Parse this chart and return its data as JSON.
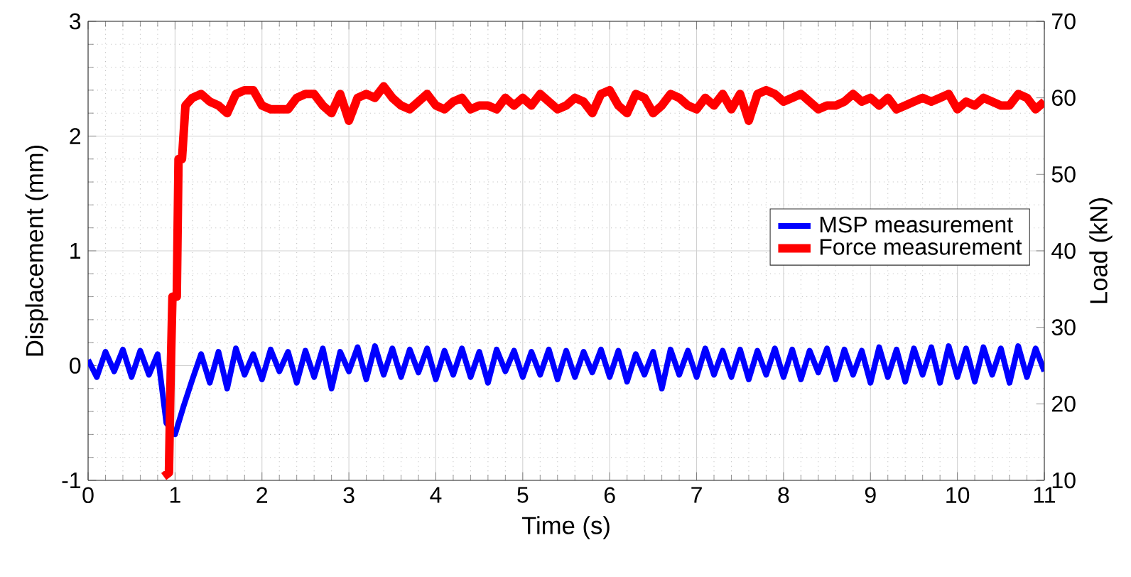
{
  "chart_data": {
    "type": "line",
    "xlabel": "Time (s)",
    "ylabel": "Displacement (mm)",
    "y2label": "Load (kN)",
    "xlim": [
      0,
      11
    ],
    "xticks": [
      0,
      1,
      2,
      3,
      4,
      5,
      6,
      7,
      8,
      9,
      10,
      11
    ],
    "ylim": [
      -1,
      3
    ],
    "yticks": [
      -1,
      0,
      1,
      2,
      3
    ],
    "y2lim": [
      10,
      70
    ],
    "y2ticks": [
      10,
      20,
      30,
      40,
      50,
      60,
      70
    ],
    "grid": true,
    "legend": "right",
    "marker": "none",
    "line_style": "solid",
    "series": [
      {
        "name": "MSP measurement",
        "color": "#0000ff",
        "axis": "y",
        "x": [
          0,
          0.1,
          0.2,
          0.3,
          0.4,
          0.5,
          0.6,
          0.7,
          0.8,
          0.9,
          1.0,
          1.1,
          1.2,
          1.3,
          1.4,
          1.5,
          1.6,
          1.7,
          1.8,
          1.9,
          2.0,
          2.1,
          2.2,
          2.3,
          2.4,
          2.5,
          2.6,
          2.7,
          2.8,
          2.9,
          3.0,
          3.1,
          3.2,
          3.3,
          3.4,
          3.5,
          3.6,
          3.7,
          3.8,
          3.9,
          4.0,
          4.1,
          4.2,
          4.3,
          4.4,
          4.5,
          4.6,
          4.7,
          4.8,
          4.9,
          5.0,
          5.1,
          5.2,
          5.3,
          5.4,
          5.5,
          5.6,
          5.7,
          5.8,
          5.9,
          6.0,
          6.1,
          6.2,
          6.3,
          6.4,
          6.5,
          6.6,
          6.7,
          6.8,
          6.9,
          7.0,
          7.1,
          7.2,
          7.3,
          7.4,
          7.5,
          7.6,
          7.7,
          7.8,
          7.9,
          8.0,
          8.1,
          8.2,
          8.3,
          8.4,
          8.5,
          8.6,
          8.7,
          8.8,
          8.9,
          9.0,
          9.1,
          9.2,
          9.3,
          9.4,
          9.5,
          9.6,
          9.7,
          9.8,
          9.9,
          10.0,
          10.1,
          10.2,
          10.3,
          10.4,
          10.5,
          10.6,
          10.7,
          10.8,
          10.9,
          11.0
        ],
        "values": [
          0.05,
          -0.1,
          0.12,
          -0.05,
          0.14,
          -0.1,
          0.13,
          -0.08,
          0.1,
          -0.5,
          -0.6,
          -0.35,
          -0.12,
          0.1,
          -0.15,
          0.12,
          -0.2,
          0.15,
          -0.08,
          0.1,
          -0.12,
          0.14,
          -0.05,
          0.12,
          -0.15,
          0.13,
          -0.1,
          0.15,
          -0.2,
          0.12,
          -0.05,
          0.16,
          -0.12,
          0.17,
          -0.08,
          0.15,
          -0.1,
          0.14,
          -0.06,
          0.15,
          -0.12,
          0.13,
          -0.08,
          0.15,
          -0.1,
          0.12,
          -0.15,
          0.14,
          -0.05,
          0.13,
          -0.1,
          0.12,
          -0.08,
          0.14,
          -0.12,
          0.13,
          -0.1,
          0.12,
          -0.06,
          0.14,
          -0.1,
          0.13,
          -0.14,
          0.1,
          -0.08,
          0.12,
          -0.2,
          0.14,
          -0.08,
          0.13,
          -0.1,
          0.15,
          -0.08,
          0.13,
          -0.1,
          0.14,
          -0.12,
          0.13,
          -0.08,
          0.15,
          -0.1,
          0.14,
          -0.12,
          0.13,
          -0.06,
          0.15,
          -0.12,
          0.14,
          -0.08,
          0.13,
          -0.15,
          0.16,
          -0.1,
          0.14,
          -0.14,
          0.15,
          -0.08,
          0.16,
          -0.15,
          0.17,
          -0.1,
          0.15,
          -0.14,
          0.16,
          -0.08,
          0.15,
          -0.15,
          0.17,
          -0.1,
          0.15,
          -0.05
        ]
      },
      {
        "name": "Force measurement",
        "color": "#ff0000",
        "axis": "y2",
        "x": [
          0.87,
          0.93,
          0.95,
          0.97,
          1.02,
          1.04,
          1.08,
          1.12,
          1.2,
          1.3,
          1.4,
          1.5,
          1.6,
          1.7,
          1.8,
          1.9,
          2.0,
          2.1,
          2.2,
          2.3,
          2.4,
          2.5,
          2.6,
          2.7,
          2.8,
          2.9,
          3.0,
          3.1,
          3.2,
          3.3,
          3.4,
          3.5,
          3.6,
          3.7,
          3.8,
          3.9,
          4.0,
          4.1,
          4.2,
          4.3,
          4.4,
          4.5,
          4.6,
          4.7,
          4.8,
          4.9,
          5.0,
          5.1,
          5.2,
          5.3,
          5.4,
          5.5,
          5.6,
          5.7,
          5.8,
          5.9,
          6.0,
          6.1,
          6.2,
          6.3,
          6.4,
          6.5,
          6.6,
          6.7,
          6.8,
          6.9,
          7.0,
          7.1,
          7.2,
          7.3,
          7.4,
          7.5,
          7.6,
          7.7,
          7.8,
          7.9,
          8.0,
          8.1,
          8.2,
          8.3,
          8.4,
          8.5,
          8.6,
          8.7,
          8.8,
          8.9,
          9.0,
          9.1,
          9.2,
          9.3,
          9.4,
          9.5,
          9.6,
          9.7,
          9.8,
          9.9,
          10.0,
          10.1,
          10.2,
          10.3,
          10.4,
          10.5,
          10.6,
          10.7,
          10.8,
          10.9,
          11.0
        ],
        "values": [
          10.5,
          11,
          24,
          34,
          34,
          52,
          52,
          59,
          60,
          60.5,
          59.5,
          59,
          58,
          60.5,
          61,
          61,
          59,
          58.5,
          58.5,
          58.5,
          60,
          60.5,
          60.5,
          59,
          58,
          60.5,
          57,
          60,
          60.5,
          60,
          61.5,
          60,
          59,
          58.5,
          59.5,
          60.5,
          59,
          58.5,
          59.5,
          60,
          58.5,
          59,
          59,
          58.5,
          60,
          59,
          60,
          59,
          60.5,
          59.5,
          58.5,
          59,
          60,
          59.5,
          58,
          60.5,
          61,
          59,
          58,
          60.5,
          60,
          58,
          59,
          60.5,
          60,
          59,
          58.5,
          60,
          59,
          60.5,
          58.5,
          60.5,
          57,
          60.5,
          61,
          60.5,
          59.5,
          60,
          60.5,
          59.5,
          58.5,
          59,
          59,
          59.5,
          60.5,
          59.5,
          60,
          59,
          60,
          58.5,
          59,
          59.5,
          60,
          59.5,
          60,
          60.5,
          58.5,
          59.5,
          59,
          60,
          59.5,
          59,
          59,
          60.5,
          60,
          58.5,
          59.5
        ]
      }
    ]
  }
}
